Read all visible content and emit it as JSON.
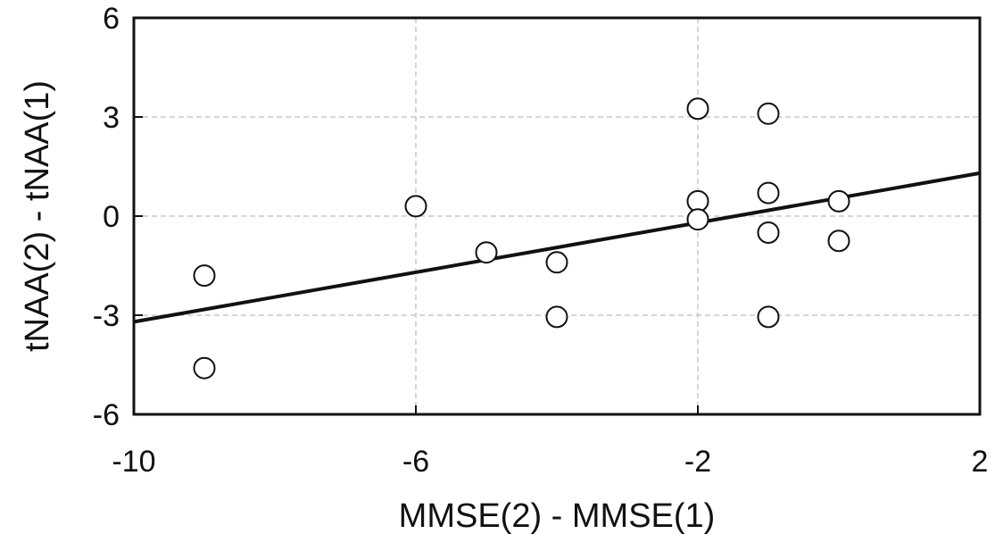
{
  "chart_data": {
    "type": "scatter",
    "title": "",
    "xlabel": "MMSE(2) - MMSE(1)",
    "ylabel": "tNAA(2) - tNAA(1)",
    "xlim": [
      -10,
      2
    ],
    "ylim": [
      -6,
      6
    ],
    "xticks": [
      -10,
      -6,
      -2,
      2
    ],
    "yticks": [
      -6,
      -3,
      0,
      3,
      6
    ],
    "grid": true,
    "marker": "open-circle",
    "points": [
      {
        "x": -9,
        "y": -1.8
      },
      {
        "x": -9,
        "y": -4.6
      },
      {
        "x": -6,
        "y": 0.3
      },
      {
        "x": -5,
        "y": -1.1
      },
      {
        "x": -4,
        "y": -1.4
      },
      {
        "x": -4,
        "y": -3.05
      },
      {
        "x": -2,
        "y": 3.25
      },
      {
        "x": -2,
        "y": 0.45
      },
      {
        "x": -2,
        "y": -0.1
      },
      {
        "x": -1,
        "y": 3.1
      },
      {
        "x": -1,
        "y": 0.7
      },
      {
        "x": -1,
        "y": -0.5
      },
      {
        "x": -1,
        "y": -3.05
      },
      {
        "x": 0,
        "y": 0.45
      },
      {
        "x": 0,
        "y": -0.75
      }
    ],
    "fit_line": {
      "x": [
        -10,
        2
      ],
      "y": [
        -3.2,
        1.3
      ]
    },
    "colors": {
      "marker_edge": "#111111",
      "fit_line": "#111111",
      "grid": "#c8c8c8",
      "frame": "#111111"
    }
  }
}
